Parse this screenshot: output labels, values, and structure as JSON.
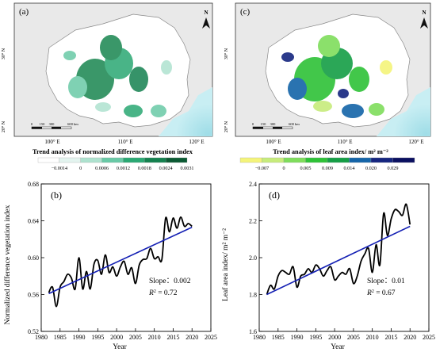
{
  "maps": [
    {
      "label": "(a)",
      "lat_labels": [
        "30° N",
        "20° N"
      ],
      "lon_labels": [
        "100° E",
        "110° E",
        "120° E"
      ],
      "north": "N",
      "scale": {
        "ticks": [
          "0",
          "150",
          "300",
          "600 km"
        ]
      },
      "title": "Trend analysis of normalized difference vegetation index",
      "legend": {
        "labels": [
          "−0.0014",
          "0",
          "0.0006",
          "0.0012",
          "0.0018",
          "0.0024",
          "0.0031"
        ],
        "colors": [
          "#ffffff",
          "#e3f4ef",
          "#aee2cf",
          "#69c9a6",
          "#2aa873",
          "#14814f",
          "#0a5a33"
        ]
      }
    },
    {
      "label": "(c)",
      "lat_labels": [
        "30° N",
        "20° N"
      ],
      "lon_labels": [
        "100° E",
        "110° E",
        "120° E"
      ],
      "north": "N",
      "scale": {
        "ticks": [
          "0",
          "150",
          "300",
          "600 km"
        ]
      },
      "title": "Trend analysis of leaf area index/ m² m⁻²",
      "legend": {
        "labels": [
          "−0.007",
          "0",
          "0.005",
          "0.009",
          "0.014",
          "0.020",
          "0.029"
        ],
        "colors": [
          "#f4f47a",
          "#c7ec7c",
          "#7fdd5c",
          "#2ec237",
          "#159e45",
          "#1464a8",
          "#15257f",
          "#0a1060"
        ]
      }
    }
  ],
  "chart_data": [
    {
      "type": "line",
      "panel_label": "(b)",
      "xlabel": "Year",
      "ylabel": "Normalized difference vegetation index",
      "xlim": [
        1980,
        2025
      ],
      "ylim": [
        0.52,
        0.68
      ],
      "xticks": [
        1980,
        1985,
        1990,
        1995,
        2000,
        2005,
        2010,
        2015,
        2020,
        2025
      ],
      "yticks": [
        0.52,
        0.56,
        0.6,
        0.64,
        0.68
      ],
      "ytick_labels": [
        "0.52",
        "0.56",
        "0.60",
        "0.64",
        "0.68"
      ],
      "x": [
        1982,
        1983,
        1984,
        1985,
        1986,
        1987,
        1988,
        1989,
        1990,
        1991,
        1992,
        1993,
        1994,
        1995,
        1996,
        1997,
        1998,
        1999,
        2000,
        2001,
        2002,
        2003,
        2004,
        2005,
        2006,
        2007,
        2008,
        2009,
        2010,
        2011,
        2012,
        2013,
        2014,
        2015,
        2016,
        2017,
        2018,
        2019,
        2020
      ],
      "series": [
        {
          "values": [
            0.562,
            0.568,
            0.547,
            0.568,
            0.574,
            0.582,
            0.578,
            0.566,
            0.6,
            0.566,
            0.585,
            0.566,
            0.593,
            0.597,
            0.582,
            0.603,
            0.584,
            0.59,
            0.58,
            0.59,
            0.596,
            0.582,
            0.589,
            0.572,
            0.592,
            0.598,
            0.599,
            0.61,
            0.599,
            0.601,
            0.598,
            0.643,
            0.628,
            0.643,
            0.632,
            0.644,
            0.634,
            0.637,
            0.634
          ]
        },
        {
          "trend": [
            0.561,
            0.633
          ]
        }
      ],
      "annotation": {
        "slope": "Slope：0.002",
        "r2_prefix": "R",
        "r2_value": " = 0.72"
      }
    },
    {
      "type": "line",
      "panel_label": "(d)",
      "xlabel": "Year",
      "ylabel": "Leaf area index/ m² m⁻²",
      "xlim": [
        1980,
        2025
      ],
      "ylim": [
        1.6,
        2.4
      ],
      "xticks": [
        1980,
        1985,
        1990,
        1995,
        2000,
        2005,
        2010,
        2015,
        2020,
        2025
      ],
      "yticks": [
        1.6,
        1.8,
        2.0,
        2.2,
        2.4
      ],
      "ytick_labels": [
        "1.6",
        "1.8",
        "2.0",
        "2.2",
        "2.4"
      ],
      "x": [
        1982,
        1983,
        1984,
        1985,
        1986,
        1987,
        1988,
        1989,
        1990,
        1991,
        1992,
        1993,
        1994,
        1995,
        1996,
        1997,
        1998,
        1999,
        2000,
        2001,
        2002,
        2003,
        2004,
        2005,
        2006,
        2007,
        2008,
        2009,
        2010,
        2011,
        2012,
        2013,
        2014,
        2015,
        2016,
        2017,
        2018,
        2019,
        2020
      ],
      "series": [
        {
          "values": [
            1.8,
            1.85,
            1.83,
            1.9,
            1.93,
            1.92,
            1.91,
            1.95,
            1.84,
            1.9,
            1.91,
            1.94,
            1.92,
            1.96,
            1.94,
            1.9,
            1.93,
            1.95,
            1.88,
            1.9,
            1.92,
            1.91,
            1.94,
            1.86,
            1.9,
            1.98,
            2.02,
            2.05,
            1.92,
            2.07,
            1.96,
            2.24,
            2.12,
            2.21,
            2.26,
            2.25,
            2.23,
            2.29,
            2.18
          ]
        },
        {
          "trend": [
            1.8,
            2.17
          ]
        }
      ],
      "annotation": {
        "slope": "Slope：0.01",
        "r2_prefix": "R",
        "r2_value": " = 0.67"
      }
    }
  ]
}
